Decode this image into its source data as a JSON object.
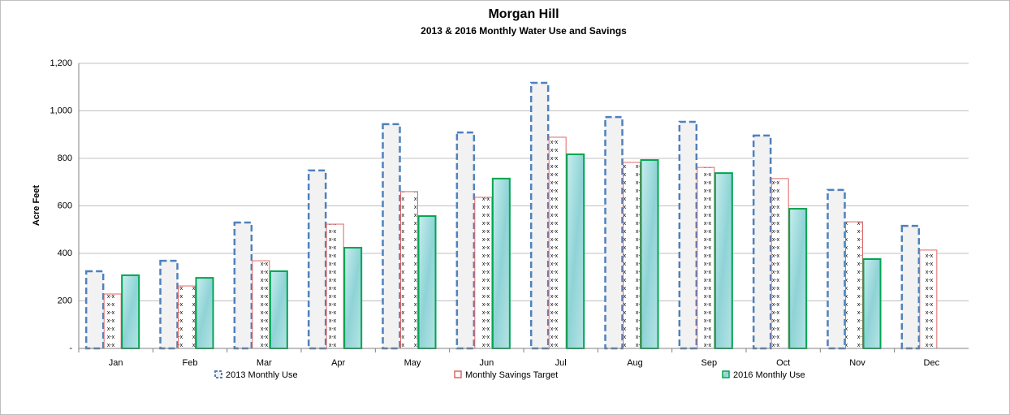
{
  "chart_data": {
    "type": "bar",
    "title": "Morgan Hill",
    "subtitle": "2013 & 2016 Monthly Water Use and Savings",
    "y_label": "Acre Feet",
    "categories": [
      "Jan",
      "Feb",
      "Mar",
      "Apr",
      "May",
      "Jun",
      "Jul",
      "Aug",
      "Sep",
      "Oct",
      "Nov",
      "Dec"
    ],
    "series": [
      {
        "name": "2013 Monthly Use",
        "color": "#4f81bd",
        "values": [
          325,
          369,
          530,
          749,
          944,
          909,
          1118,
          974,
          954,
          896,
          667,
          516
        ]
      },
      {
        "name": "Monthly Savings Target",
        "color": "#e06666",
        "values": [
          229,
          263,
          369,
          523,
          660,
          636,
          889,
          783,
          762,
          715,
          533,
          414
        ]
      },
      {
        "name": "2016 Monthly Use",
        "color": "#00a550",
        "values": [
          308,
          297,
          325,
          424,
          557,
          715,
          817,
          793,
          738,
          588,
          376,
          null
        ]
      }
    ],
    "ylim": [
      0,
      1200
    ],
    "yticks": [
      {
        "value": 0,
        "label": "-"
      },
      200,
      400,
      600,
      800,
      {
        "value": 1000,
        "label": "1,000"
      },
      {
        "value": 1200,
        "label": "1,200"
      }
    ],
    "grid": true,
    "legend": "bottom"
  }
}
